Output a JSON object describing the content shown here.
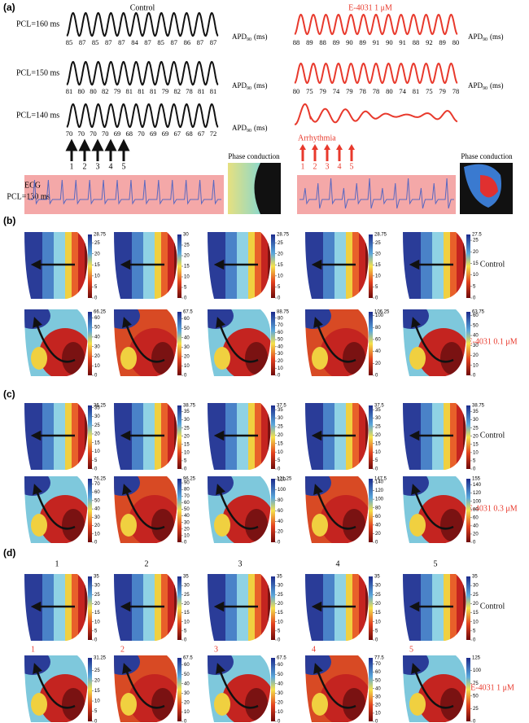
{
  "panel_a": {
    "label": "(a)",
    "control": "Control",
    "drug": "E-4031 1 μM",
    "apd_label": "APD",
    "apd_sub": "90",
    "apd_unit": "(ms)",
    "rows": [
      {
        "pcl": "PCL=160 ms",
        "control_apd": [
          85,
          87,
          85,
          87,
          87,
          84,
          87,
          85,
          87,
          86,
          87,
          87
        ],
        "drug_apd": [
          88,
          89,
          88,
          89,
          90,
          89,
          91,
          90,
          91,
          88,
          92,
          89,
          80
        ]
      },
      {
        "pcl": "PCL=150 ms",
        "control_apd": [
          81,
          80,
          80,
          82,
          79,
          81,
          81,
          81,
          79,
          82,
          78,
          81,
          81
        ],
        "drug_apd": [
          80,
          75,
          79,
          74,
          79,
          78,
          78,
          80,
          74,
          81,
          75,
          79,
          78
        ]
      },
      {
        "pcl": "PCL=140 ms",
        "control_apd": [
          70,
          70,
          70,
          70,
          69,
          68,
          70,
          69,
          69,
          67,
          68,
          67,
          72
        ],
        "drug_apd": []
      }
    ],
    "control_beats": [
      1,
      2,
      3,
      4,
      5
    ],
    "drug_beats": [
      1,
      2,
      3,
      4,
      5
    ],
    "arrhythmia": "Arrhythmia",
    "ecg": "ECG",
    "ecg_pcl": "PCL=130 ms",
    "phase": [
      "Phase conduction",
      "Phase conduction"
    ]
  },
  "panels": [
    {
      "label": "(b)",
      "columns": [],
      "rows": [
        {
          "label": "Control",
          "maps": [
            {
              "max": 28.75,
              "ticks": [
                0,
                5,
                10,
                15,
                20,
                25
              ]
            },
            {
              "max": 30,
              "ticks": [
                0,
                5,
                10,
                15,
                20,
                25
              ]
            },
            {
              "max": 28.75,
              "ticks": [
                0,
                5,
                10,
                15,
                20,
                25
              ]
            },
            {
              "max": 28.75,
              "ticks": [
                0,
                5,
                10,
                15,
                20,
                25
              ]
            },
            {
              "max": 27.5,
              "ticks": [
                0,
                5,
                10,
                15,
                20,
                25
              ]
            }
          ]
        },
        {
          "label": "E-4031 0.1 μM",
          "maps": [
            {
              "max": 66.25,
              "ticks": [
                0,
                10,
                20,
                30,
                40,
                50,
                60
              ]
            },
            {
              "max": 67.5,
              "ticks": [
                0,
                10,
                20,
                30,
                40,
                50,
                60
              ]
            },
            {
              "max": 88.75,
              "ticks": [
                0,
                10,
                20,
                30,
                40,
                50,
                60,
                70,
                80
              ]
            },
            {
              "max": 106.25,
              "ticks": [
                0,
                20,
                40,
                60,
                80,
                100
              ]
            },
            {
              "max": 63.75,
              "ticks": [
                0,
                10,
                20,
                30,
                40,
                50,
                60
              ]
            }
          ]
        }
      ]
    },
    {
      "label": "(c)",
      "columns": [],
      "rows": [
        {
          "label": "Control",
          "maps": [
            {
              "max": 36.25,
              "ticks": [
                0,
                5,
                10,
                15,
                20,
                25,
                30,
                35
              ]
            },
            {
              "max": 38.75,
              "ticks": [
                0,
                5,
                10,
                15,
                20,
                25,
                30,
                35
              ]
            },
            {
              "max": 37.5,
              "ticks": [
                0,
                5,
                10,
                15,
                20,
                25,
                30,
                35
              ]
            },
            {
              "max": 37.5,
              "ticks": [
                0,
                5,
                10,
                15,
                20,
                25,
                30,
                35
              ]
            },
            {
              "max": 38.75,
              "ticks": [
                0,
                5,
                10,
                15,
                20,
                25,
                30,
                35
              ]
            }
          ]
        },
        {
          "label": "E-4031 0.3 μM",
          "maps": [
            {
              "max": 76.25,
              "ticks": [
                0,
                10,
                20,
                30,
                40,
                50,
                60,
                70
              ]
            },
            {
              "max": 96.25,
              "ticks": [
                0,
                10,
                20,
                30,
                40,
                50,
                60,
                70,
                80,
                90
              ]
            },
            {
              "max": 121.25,
              "ticks": [
                0,
                20,
                40,
                60,
                80,
                100,
                120
              ]
            },
            {
              "max": 147.5,
              "ticks": [
                0,
                20,
                40,
                60,
                80,
                100,
                120,
                140
              ]
            },
            {
              "max": 155,
              "ticks": [
                0,
                20,
                40,
                60,
                80,
                100,
                120,
                140
              ]
            }
          ]
        }
      ]
    },
    {
      "label": "(d)",
      "columns": [
        1,
        2,
        3,
        4,
        5
      ],
      "rows": [
        {
          "label": "Control",
          "maps": [
            {
              "max": 35,
              "ticks": [
                0,
                5,
                10,
                15,
                20,
                25,
                30
              ]
            },
            {
              "max": 35,
              "ticks": [
                0,
                5,
                10,
                15,
                20,
                25,
                30
              ]
            },
            {
              "max": 35,
              "ticks": [
                0,
                5,
                10,
                15,
                20,
                25,
                30
              ]
            },
            {
              "max": 35,
              "ticks": [
                0,
                5,
                10,
                15,
                20,
                25,
                30
              ]
            },
            {
              "max": 35,
              "ticks": [
                0,
                5,
                10,
                15,
                20,
                25,
                30
              ]
            }
          ]
        },
        {
          "label": "E-4031 1  μM",
          "numbers": [
            1,
            2,
            3,
            4,
            5
          ],
          "maps": [
            {
              "max": 31.25,
              "ticks": [
                0,
                5,
                10,
                15,
                20,
                25
              ]
            },
            {
              "max": 67.5,
              "ticks": [
                0,
                10,
                20,
                30,
                40,
                50,
                60
              ]
            },
            {
              "max": 67.5,
              "ticks": [
                0,
                10,
                20,
                30,
                40,
                50,
                60
              ]
            },
            {
              "max": 77.5,
              "ticks": [
                0,
                10,
                20,
                30,
                40,
                50,
                60,
                70
              ]
            },
            {
              "max": 125,
              "ticks": [
                0,
                25,
                50,
                75,
                100
              ]
            }
          ]
        }
      ]
    }
  ]
}
